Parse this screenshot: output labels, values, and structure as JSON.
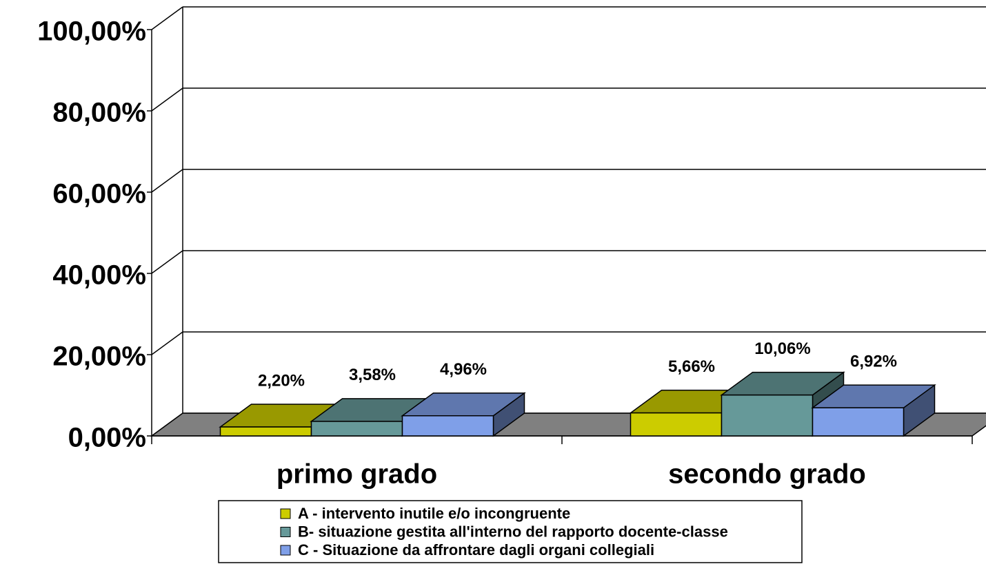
{
  "chart_data": {
    "type": "bar3d",
    "categories": [
      "primo grado",
      "secondo grado"
    ],
    "series": [
      {
        "name": "A - intervento inutile e/o incongruente",
        "color": "#cccc00",
        "values": [
          2.2,
          5.66
        ],
        "value_labels": [
          "2,20%",
          "5,66%"
        ]
      },
      {
        "name": "B- situazione gestita all'interno del rapporto docente-classe",
        "color": "#669999",
        "values": [
          3.58,
          10.06
        ],
        "value_labels": [
          "3,58%",
          "10,06%"
        ]
      },
      {
        "name": "C - Situazione da affrontare dagli organi collegiali",
        "color": "#7f9fe8",
        "values": [
          4.96,
          6.92
        ],
        "value_labels": [
          "4,96%",
          "6,92%"
        ]
      }
    ],
    "ylim": [
      0,
      100
    ],
    "yticks": [
      {
        "value": 0,
        "label": "0,00%"
      },
      {
        "value": 20,
        "label": "20,00%"
      },
      {
        "value": 40,
        "label": "40,00%"
      },
      {
        "value": 60,
        "label": "60,00%"
      },
      {
        "value": 80,
        "label": "80,00%"
      },
      {
        "value": 100,
        "label": "100,00%"
      }
    ],
    "grid": true,
    "legend": "bottom"
  }
}
